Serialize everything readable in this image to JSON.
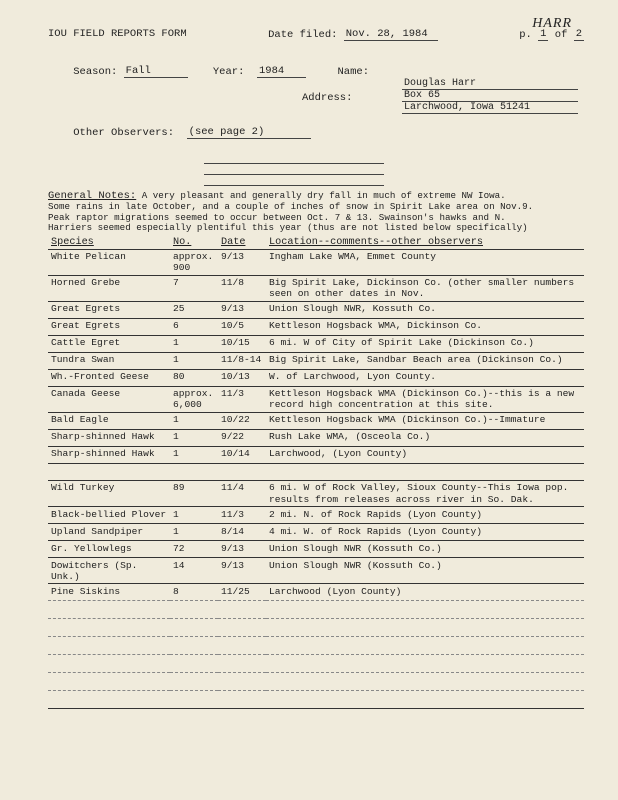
{
  "header": {
    "handwritten": "HARR",
    "title": "IOU FIELD REPORTS FORM",
    "date_filed_label": "Date filed:",
    "date_filed": "Nov. 28, 1984",
    "page_label": "p.",
    "page_cur": "1",
    "page_of": "of",
    "page_total": "2"
  },
  "form": {
    "season_label": "Season:",
    "season": "Fall",
    "year_label": "Year:",
    "year": "1984",
    "name_label": "Name:",
    "name": "Douglas Harr",
    "address_label": "Address:",
    "address1": "Box 65",
    "address2": "Larchwood, Iowa 51241",
    "other_obs_label": "Other Observers:",
    "other_obs": "(see page 2)"
  },
  "notes": {
    "label": "General Notes:",
    "text1": "A very pleasant and generally dry fall in much of extreme NW Iowa.",
    "text2": "Some rains in late October, and a couple of inches of snow in Spirit Lake area on Nov.9.",
    "text3": "Peak raptor migrations seemed to occur between Oct. 7 & 13.  Swainson's hawks and N.",
    "text4": "Harriers seemed especially plentiful this year (thus are not listed below specifically)"
  },
  "table": {
    "h_species": "Species",
    "h_no": "No.",
    "h_date": "Date",
    "h_loc": "Location--comments--other observers",
    "rows": [
      {
        "sp": "White Pelican",
        "no": "approx. 900",
        "dt": "9/13",
        "loc": "Ingham Lake WMA, Emmet County"
      },
      {
        "sp": "Horned Grebe",
        "no": "7",
        "dt": "11/8",
        "loc": "Big Spirit Lake, Dickinson Co. (other smaller numbers seen on other dates in Nov."
      },
      {
        "sp": "Great Egrets",
        "no": "25",
        "dt": "9/13",
        "loc": "Union Slough NWR, Kossuth Co."
      },
      {
        "sp": "Great Egrets",
        "no": "6",
        "dt": "10/5",
        "loc": "Kettleson Hogsback WMA, Dickinson Co."
      },
      {
        "sp": "Cattle Egret",
        "no": "1",
        "dt": "10/15",
        "loc": "6 mi. W of City of Spirit Lake (Dickinson Co.)"
      },
      {
        "sp": "Tundra Swan",
        "no": "1",
        "dt": "11/8-14",
        "loc": "Big Spirit Lake, Sandbar Beach area (Dickinson Co.)"
      },
      {
        "sp": "Wh.-Fronted Geese",
        "no": "80",
        "dt": "10/13",
        "loc": "W. of Larchwood, Lyon County."
      },
      {
        "sp": "Canada Geese",
        "no": "approx. 6,000",
        "dt": "11/3",
        "loc": "Kettleson Hogsback WMA (Dickinson Co.)--this is a new record high concentration at this site."
      },
      {
        "sp": "Bald Eagle",
        "no": "1",
        "dt": "10/22",
        "loc": "Kettleson Hogsback WMA (Dickinson Co.)--Immature"
      },
      {
        "sp": "Sharp-shinned Hawk",
        "no": "1",
        "dt": "9/22",
        "loc": "Rush Lake WMA, (Osceola Co.)"
      },
      {
        "sp": "Sharp-shinned Hawk",
        "no": "1",
        "dt": "10/14",
        "loc": "Larchwood, (Lyon County)"
      },
      {
        "sp": "",
        "no": "",
        "dt": "",
        "loc": ""
      },
      {
        "sp": "Wild Turkey",
        "no": "89",
        "dt": "11/4",
        "loc": "6 mi. W of Rock Valley, Sioux County--This Iowa pop. results from releases across river in So. Dak."
      },
      {
        "sp": "Black-bellied Plover",
        "no": "1",
        "dt": "11/3",
        "loc": "2 mi. N. of Rock Rapids (Lyon County)"
      },
      {
        "sp": "Upland Sandpiper",
        "no": "1",
        "dt": "8/14",
        "loc": "4 mi. W. of Rock Rapids (Lyon County)"
      },
      {
        "sp": "Gr. Yellowlegs",
        "no": "72",
        "dt": "9/13",
        "loc": "Union Slough NWR (Kossuth Co.)"
      },
      {
        "sp": "Dowitchers (Sp. Unk.)",
        "no": "14",
        "dt": "9/13",
        "loc": "Union Slough NWR (Kossuth Co.)"
      },
      {
        "sp": "Pine Siskins",
        "no": "8",
        "dt": "11/25",
        "loc": "Larchwood (Lyon County)"
      }
    ]
  },
  "style": {
    "bg": "#f0ebdc",
    "text": "#222",
    "rule": "#333"
  }
}
